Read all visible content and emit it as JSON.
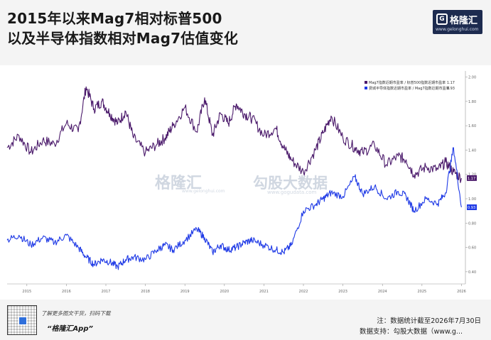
{
  "title": {
    "line1": "2015年以来Mag7相对标普500",
    "line2": "以及半导体指数相对Mag7估值变化"
  },
  "brand": {
    "icon": "G",
    "name": "格隆汇",
    "url": "www.gelonghui.com"
  },
  "watermark": {
    "brand1": "格隆汇",
    "brand1_url": "www.gelonghui.com",
    "brand2": "勾股大数据",
    "brand2_url": "www.gogudata.com"
  },
  "footer": {
    "hint": "了解更多图文干货，扫码下载",
    "app": "“格隆汇App”",
    "note": "注：数据统计截至2026年7月30日",
    "source": "数据支持：勾股大数据（www.g..."
  },
  "colors": {
    "series1": "#4b1a6b",
    "series2": "#1f3ae6"
  },
  "chart_data": {
    "type": "line",
    "title": "",
    "xlabel": "",
    "ylabel": "",
    "x_ticks": [
      "2015",
      "2016",
      "2017",
      "2018",
      "2019",
      "2020",
      "2021",
      "2022",
      "2023",
      "2024",
      "2025",
      "2026"
    ],
    "xlim": [
      2015.0,
      2026.6
    ],
    "y_ticks": [
      0.4,
      0.6,
      0.8,
      1.0,
      1.2,
      1.4,
      1.6,
      1.8,
      2.0
    ],
    "y_tick_labels": [
      "0.40",
      "0.60",
      "0.80",
      "1.00",
      "1.20",
      "1.40",
      "1.60",
      "1.80",
      "2.00"
    ],
    "ylim": [
      0.3,
      2.05
    ],
    "grid": false,
    "legend_position": "top-right",
    "series": [
      {
        "name": "Mag7指数近期市盈率 / 标普500指数近期市盈率",
        "last_value_label": "1.17",
        "x": [
          2015.0,
          2015.3,
          2015.6,
          2015.9,
          2016.2,
          2016.5,
          2016.8,
          2017.0,
          2017.2,
          2017.4,
          2017.6,
          2017.8,
          2018.0,
          2018.2,
          2018.5,
          2018.8,
          2019.0,
          2019.2,
          2019.5,
          2019.8,
          2020.0,
          2020.2,
          2020.4,
          2020.6,
          2020.8,
          2021.0,
          2021.2,
          2021.5,
          2021.8,
          2022.0,
          2022.2,
          2022.5,
          2022.8,
          2023.0,
          2023.2,
          2023.5,
          2023.8,
          2024.0,
          2024.3,
          2024.6,
          2024.9,
          2025.1,
          2025.3,
          2025.6,
          2025.9,
          2026.1,
          2026.3,
          2026.5
        ],
        "y": [
          1.42,
          1.52,
          1.38,
          1.48,
          1.45,
          1.62,
          1.55,
          1.92,
          1.74,
          1.8,
          1.7,
          1.62,
          1.72,
          1.5,
          1.38,
          1.45,
          1.5,
          1.6,
          1.75,
          1.55,
          1.83,
          1.52,
          1.7,
          1.62,
          1.78,
          1.7,
          1.66,
          1.52,
          1.58,
          1.42,
          1.32,
          1.22,
          1.4,
          1.54,
          1.68,
          1.5,
          1.42,
          1.38,
          1.44,
          1.28,
          1.35,
          1.32,
          1.2,
          1.26,
          1.24,
          1.3,
          1.22,
          1.17
        ]
      },
      {
        "name": "费城半导体指数近期市盈率 / Mag7指数近期市盈率",
        "last_value_label": "0.93",
        "x": [
          2015.0,
          2015.3,
          2015.6,
          2015.9,
          2016.2,
          2016.5,
          2016.8,
          2017.0,
          2017.2,
          2017.4,
          2017.6,
          2017.8,
          2018.0,
          2018.2,
          2018.5,
          2018.8,
          2019.0,
          2019.2,
          2019.5,
          2019.8,
          2020.0,
          2020.2,
          2020.4,
          2020.6,
          2020.8,
          2021.0,
          2021.2,
          2021.5,
          2021.8,
          2022.0,
          2022.2,
          2022.5,
          2022.8,
          2023.0,
          2023.2,
          2023.5,
          2023.8,
          2024.0,
          2024.3,
          2024.6,
          2024.9,
          2025.1,
          2025.3,
          2025.6,
          2025.9,
          2026.1,
          2026.3,
          2026.5
        ],
        "y": [
          0.66,
          0.7,
          0.62,
          0.68,
          0.64,
          0.7,
          0.6,
          0.52,
          0.46,
          0.5,
          0.48,
          0.44,
          0.5,
          0.52,
          0.5,
          0.58,
          0.62,
          0.58,
          0.66,
          0.75,
          0.68,
          0.56,
          0.62,
          0.58,
          0.6,
          0.64,
          0.66,
          0.62,
          0.58,
          0.56,
          0.62,
          0.9,
          0.95,
          1.0,
          1.05,
          1.02,
          1.18,
          1.04,
          1.1,
          1.0,
          1.06,
          1.02,
          0.9,
          1.0,
          0.96,
          1.05,
          1.42,
          0.93
        ]
      }
    ]
  }
}
